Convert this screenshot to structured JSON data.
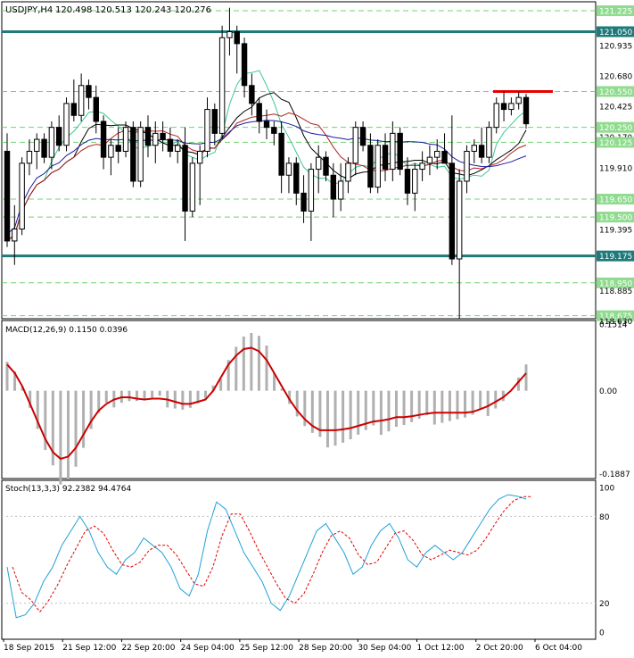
{
  "window": {
    "title": "USDJPY,H4",
    "ohlc": "120.498 120.513 120.243 120.276"
  },
  "colors": {
    "bull_candle": "#ffffff",
    "bear_candle": "#000000",
    "outline": "#000000",
    "level_line": "#1f7a7a",
    "grid_dash": "#6fd46f",
    "red_line": "#e60000",
    "macd_line": "#cc0000",
    "macd_hist": "#b0b0b0",
    "stoch_main": "#20a0d8",
    "stoch_signal": "#e00000",
    "ma_blue": "#1a1aa0",
    "ma_red": "#b02020",
    "ma_green": "#40c890",
    "ma_black": "#000000"
  },
  "chart_data": [
    {
      "type": "candlestick",
      "symbol": "USDJPY",
      "timeframe": "H4",
      "title": "USDJPY,H4",
      "ylim": [
        118.65,
        121.3
      ],
      "y_ticks": [
        121.225,
        121.05,
        120.935,
        120.68,
        120.55,
        120.425,
        120.25,
        120.17,
        120.125,
        119.91,
        119.65,
        119.5,
        119.395,
        119.175,
        118.95,
        118.885,
        118.675,
        118.63
      ],
      "price_labels_highlighted": [
        121.225,
        121.05,
        120.55,
        120.25,
        120.125,
        119.65,
        119.5,
        119.175,
        118.95,
        118.675
      ],
      "horizontal_levels": [
        121.05,
        119.175
      ],
      "green_dashed_levels": [
        121.225,
        120.55,
        120.25,
        120.125,
        119.65,
        119.5,
        118.95,
        118.675
      ],
      "red_segment_level": 120.55,
      "x_labels": [
        "18 Sep 2015",
        "21 Sep 12:00",
        "22 Sep 20:00",
        "24 Sep 04:00",
        "25 Sep 12:00",
        "28 Sep 20:00",
        "30 Sep 04:00",
        "1 Oct 12:00",
        "2 Oct 20:00",
        "6 Oct 04:00"
      ],
      "candles": [
        [
          120.05,
          120.2,
          119.25,
          119.3
        ],
        [
          119.3,
          119.6,
          119.1,
          119.4
        ],
        [
          119.4,
          120.0,
          119.35,
          119.95
        ],
        [
          119.95,
          120.15,
          119.85,
          120.05
        ],
        [
          120.05,
          120.2,
          119.9,
          120.15
        ],
        [
          120.15,
          120.2,
          119.95,
          120.0
        ],
        [
          120.0,
          120.3,
          119.9,
          120.25
        ],
        [
          120.25,
          120.35,
          120.05,
          120.1
        ],
        [
          120.1,
          120.5,
          120.05,
          120.45
        ],
        [
          120.45,
          120.65,
          120.3,
          120.35
        ],
        [
          120.35,
          120.7,
          120.3,
          120.6
        ],
        [
          120.6,
          120.65,
          120.4,
          120.5
        ],
        [
          120.5,
          120.6,
          120.2,
          120.3
        ],
        [
          120.3,
          120.35,
          119.9,
          120.0
        ],
        [
          120.0,
          120.15,
          119.85,
          120.1
        ],
        [
          120.1,
          120.25,
          119.95,
          120.05
        ],
        [
          120.05,
          120.3,
          120.0,
          120.25
        ],
        [
          120.25,
          120.3,
          119.75,
          119.8
        ],
        [
          119.8,
          120.3,
          119.75,
          120.25
        ],
        [
          120.25,
          120.35,
          120.0,
          120.1
        ],
        [
          120.1,
          120.3,
          119.95,
          120.2
        ],
        [
          120.2,
          120.3,
          120.05,
          120.15
        ],
        [
          120.15,
          120.25,
          120.0,
          120.05
        ],
        [
          120.05,
          120.15,
          119.95,
          120.1
        ],
        [
          120.1,
          120.25,
          119.3,
          119.55
        ],
        [
          119.55,
          120.0,
          119.5,
          119.95
        ],
        [
          119.95,
          120.1,
          119.6,
          120.05
        ],
        [
          120.05,
          120.5,
          120.0,
          120.4
        ],
        [
          120.4,
          120.45,
          120.1,
          120.2
        ],
        [
          120.2,
          121.1,
          120.15,
          121.0
        ],
        [
          121.0,
          121.25,
          120.85,
          121.05
        ],
        [
          121.05,
          121.1,
          120.7,
          120.95
        ],
        [
          120.95,
          121.0,
          120.5,
          120.6
        ],
        [
          120.6,
          120.7,
          120.35,
          120.45
        ],
        [
          120.45,
          120.5,
          120.2,
          120.3
        ],
        [
          120.3,
          120.4,
          120.15,
          120.25
        ],
        [
          120.25,
          120.3,
          120.1,
          120.2
        ],
        [
          120.2,
          120.3,
          119.7,
          119.85
        ],
        [
          119.85,
          120.0,
          119.7,
          119.95
        ],
        [
          119.95,
          120.0,
          119.6,
          119.7
        ],
        [
          119.7,
          119.85,
          119.45,
          119.55
        ],
        [
          119.55,
          119.95,
          119.3,
          119.9
        ],
        [
          119.9,
          120.1,
          119.7,
          120.0
        ],
        [
          120.0,
          120.05,
          119.8,
          119.85
        ],
        [
          119.85,
          119.95,
          119.5,
          119.65
        ],
        [
          119.65,
          119.95,
          119.55,
          119.8
        ],
        [
          119.8,
          120.0,
          119.7,
          119.95
        ],
        [
          119.95,
          120.3,
          119.85,
          120.25
        ],
        [
          120.25,
          120.3,
          120.05,
          120.1
        ],
        [
          120.1,
          120.2,
          119.7,
          119.75
        ],
        [
          119.75,
          120.15,
          119.7,
          120.1
        ],
        [
          120.1,
          120.2,
          119.8,
          119.9
        ],
        [
          119.9,
          120.3,
          119.8,
          120.2
        ],
        [
          120.2,
          120.25,
          119.85,
          119.9
        ],
        [
          119.9,
          120.0,
          119.6,
          119.7
        ],
        [
          119.7,
          119.95,
          119.55,
          119.9
        ],
        [
          119.9,
          120.05,
          119.8,
          119.95
        ],
        [
          119.95,
          120.1,
          119.85,
          120.0
        ],
        [
          120.0,
          120.15,
          119.9,
          120.05
        ],
        [
          120.05,
          120.2,
          119.95,
          119.95
        ],
        [
          119.95,
          120.35,
          119.1,
          119.15
        ],
        [
          119.15,
          119.9,
          118.65,
          119.8
        ],
        [
          119.8,
          120.1,
          119.7,
          120.05
        ],
        [
          120.05,
          120.15,
          119.95,
          120.1
        ],
        [
          120.1,
          120.25,
          119.95,
          120.0
        ],
        [
          120.0,
          120.3,
          119.95,
          120.25
        ],
        [
          120.25,
          120.5,
          120.2,
          120.45
        ],
        [
          120.45,
          120.55,
          120.3,
          120.4
        ],
        [
          120.4,
          120.5,
          120.35,
          120.45
        ],
        [
          120.45,
          120.55,
          120.4,
          120.5
        ],
        [
          120.5,
          120.53,
          120.24,
          120.28
        ]
      ]
    },
    {
      "type": "line",
      "title": "MACD(12,26,9) 0.1150 0.0396",
      "ylim": [
        -0.2,
        0.16
      ],
      "y_ticks": [
        0.1514,
        0.0,
        -0.1887
      ],
      "series": [
        {
          "name": "signal",
          "values": [
            0.06,
            0.04,
            0.01,
            -0.03,
            -0.07,
            -0.11,
            -0.14,
            -0.155,
            -0.15,
            -0.13,
            -0.1,
            -0.07,
            -0.045,
            -0.03,
            -0.02,
            -0.015,
            -0.015,
            -0.018,
            -0.02,
            -0.018,
            -0.018,
            -0.02,
            -0.025,
            -0.03,
            -0.03,
            -0.025,
            -0.02,
            0.0,
            0.03,
            0.06,
            0.08,
            0.095,
            0.098,
            0.09,
            0.07,
            0.04,
            0.01,
            -0.02,
            -0.045,
            -0.065,
            -0.08,
            -0.09,
            -0.09,
            -0.09,
            -0.088,
            -0.085,
            -0.08,
            -0.075,
            -0.07,
            -0.068,
            -0.065,
            -0.06,
            -0.06,
            -0.058,
            -0.055,
            -0.052,
            -0.05,
            -0.05,
            -0.05,
            -0.05,
            -0.05,
            -0.048,
            -0.042,
            -0.035,
            -0.025,
            -0.015,
            0.0,
            0.02,
            0.04
          ]
        }
      ]
    },
    {
      "type": "line",
      "title": "Stoch(13,3,3) 92.2382 94.4764",
      "ylim": [
        0,
        100
      ],
      "y_ticks": [
        100,
        80,
        20,
        0
      ],
      "series": [
        {
          "name": "main",
          "values": [
            45,
            10,
            12,
            20,
            35,
            45,
            60,
            70,
            80,
            70,
            55,
            45,
            40,
            50,
            55,
            65,
            60,
            55,
            45,
            30,
            25,
            40,
            70,
            90,
            85,
            70,
            55,
            45,
            35,
            20,
            15,
            25,
            40,
            55,
            70,
            75,
            65,
            55,
            40,
            45,
            60,
            70,
            75,
            65,
            50,
            45,
            55,
            60,
            55,
            50,
            55,
            65,
            75,
            85,
            92,
            95,
            94,
            92
          ]
        }
      ]
    }
  ]
}
